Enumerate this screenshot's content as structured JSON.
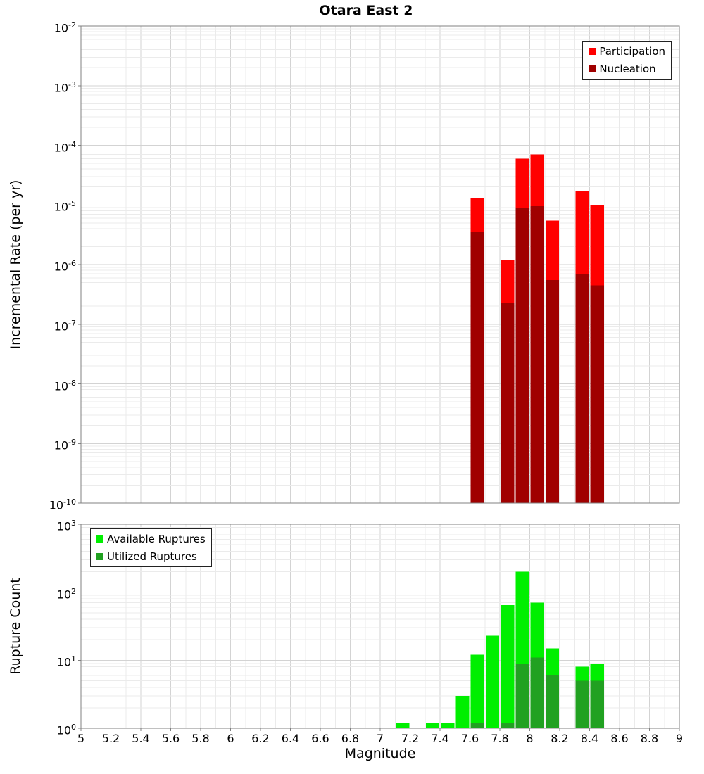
{
  "title": "Otara East 2",
  "xlabel": "Magnitude",
  "colors": {
    "participation": "#ff0000",
    "nucleation": "#a00000",
    "available": "#00ef00",
    "utilized": "#21a121",
    "grid_major": "#d3d3d3",
    "grid_minor": "#ebebeb",
    "frame": "#808080",
    "background": "#ffffff",
    "text": "#000000"
  },
  "x_axis": {
    "min": 5,
    "max": 9,
    "major_step": 0.2,
    "minor_step": 0.1,
    "tick_labels": [
      "5",
      "5.2",
      "5.4",
      "5.6",
      "5.8",
      "6",
      "6.2",
      "6.4",
      "6.6",
      "6.8",
      "7",
      "7.2",
      "7.4",
      "7.6",
      "7.8",
      "8",
      "8.2",
      "8.4",
      "8.6",
      "8.8",
      "9"
    ]
  },
  "chart_data": [
    {
      "type": "bar",
      "panel": "top",
      "ylabel": "Incremental Rate (per yr)",
      "y_scale": "log",
      "y_exp_min": -10,
      "y_exp_max": -2,
      "y_tick_exponents": [
        -2,
        -3,
        -4,
        -5,
        -6,
        -7,
        -8,
        -9,
        -10
      ],
      "bin_width": 0.1,
      "legend": {
        "position": "top-right",
        "entries": [
          {
            "label": "Participation",
            "color_key": "participation"
          },
          {
            "label": "Nucleation",
            "color_key": "nucleation"
          }
        ]
      },
      "series": [
        {
          "name": "Participation",
          "color_key": "participation",
          "points": [
            {
              "mag": 7.65,
              "value": 1.3e-05
            },
            {
              "mag": 7.85,
              "value": 1.2e-06
            },
            {
              "mag": 7.95,
              "value": 6e-05
            },
            {
              "mag": 8.05,
              "value": 7e-05
            },
            {
              "mag": 8.15,
              "value": 5.5e-06
            },
            {
              "mag": 8.35,
              "value": 1.7e-05
            },
            {
              "mag": 8.45,
              "value": 1e-05
            }
          ]
        },
        {
          "name": "Nucleation",
          "color_key": "nucleation",
          "points": [
            {
              "mag": 7.65,
              "value": 3.5e-06
            },
            {
              "mag": 7.85,
              "value": 2.3e-07
            },
            {
              "mag": 7.95,
              "value": 9e-06
            },
            {
              "mag": 8.05,
              "value": 9.5e-06
            },
            {
              "mag": 8.15,
              "value": 5.5e-07
            },
            {
              "mag": 8.35,
              "value": 7e-07
            },
            {
              "mag": 8.45,
              "value": 4.5e-07
            }
          ]
        }
      ]
    },
    {
      "type": "bar",
      "panel": "bottom",
      "ylabel": "Rupture Count",
      "y_scale": "log",
      "y_exp_min": 0,
      "y_exp_max": 3,
      "y_tick_exponents": [
        3,
        2,
        1,
        0
      ],
      "bin_width": 0.1,
      "legend": {
        "position": "top-left",
        "entries": [
          {
            "label": "Available Ruptures",
            "color_key": "available"
          },
          {
            "label": "Utilized Ruptures",
            "color_key": "utilized"
          }
        ]
      },
      "series": [
        {
          "name": "Available Ruptures",
          "color_key": "available",
          "points": [
            {
              "mag": 7.15,
              "value": 1
            },
            {
              "mag": 7.35,
              "value": 1
            },
            {
              "mag": 7.45,
              "value": 1
            },
            {
              "mag": 7.55,
              "value": 3
            },
            {
              "mag": 7.65,
              "value": 12
            },
            {
              "mag": 7.75,
              "value": 23
            },
            {
              "mag": 7.85,
              "value": 65
            },
            {
              "mag": 7.95,
              "value": 200
            },
            {
              "mag": 8.05,
              "value": 70
            },
            {
              "mag": 8.15,
              "value": 15
            },
            {
              "mag": 8.35,
              "value": 8
            },
            {
              "mag": 8.45,
              "value": 9
            }
          ]
        },
        {
          "name": "Utilized Ruptures",
          "color_key": "utilized",
          "points": [
            {
              "mag": 7.65,
              "value": 1
            },
            {
              "mag": 7.85,
              "value": 1
            },
            {
              "mag": 7.95,
              "value": 9
            },
            {
              "mag": 8.05,
              "value": 11
            },
            {
              "mag": 8.15,
              "value": 6
            },
            {
              "mag": 8.35,
              "value": 5
            },
            {
              "mag": 8.45,
              "value": 5
            }
          ]
        }
      ]
    }
  ]
}
